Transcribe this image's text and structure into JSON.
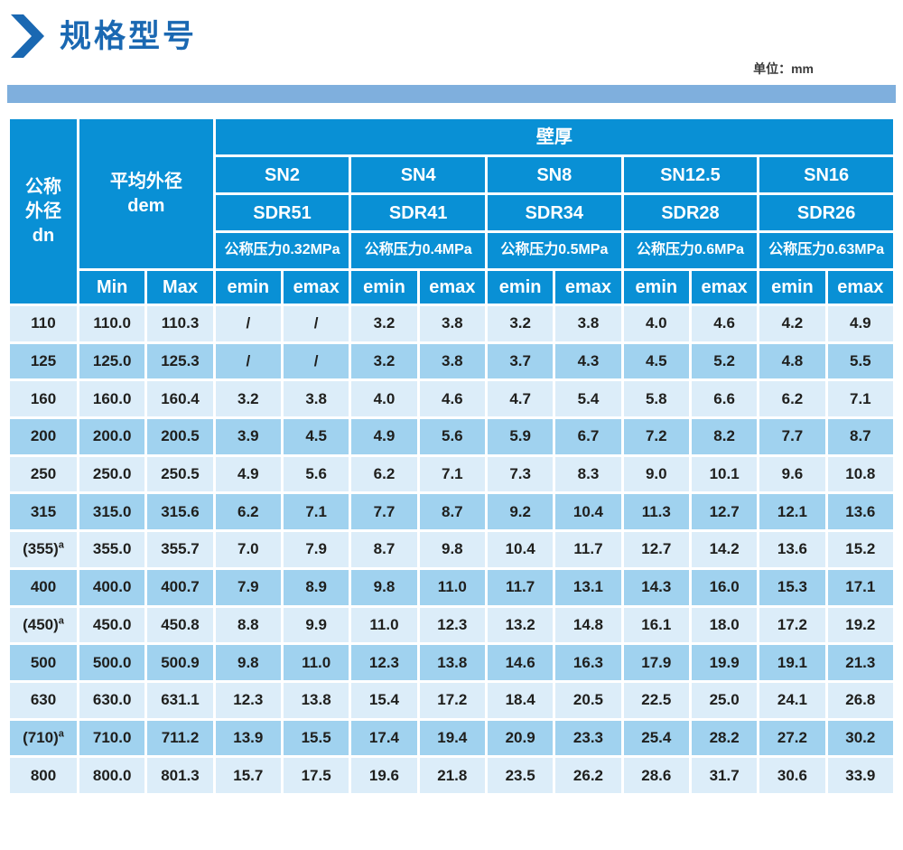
{
  "page": {
    "title": "规格型号",
    "unit_label": "单位：mm"
  },
  "colors": {
    "header_bg": "#0990d5",
    "row_light": "#dcedf9",
    "row_dark": "#a0d2ef",
    "title_blue": "#1a68b2",
    "divider_bar": "#7fafdd",
    "grid_line": "#ffffff",
    "body_text": "#1f1f1d"
  },
  "chart_data": {
    "type": "table",
    "title": "规格型号 (壁厚, 单位: mm)"
  },
  "table": {
    "header": {
      "dn_cn": "公称外径",
      "dn_en": "dn",
      "dem_cn": "平均外径",
      "dem_en": "dem",
      "wall": "壁厚",
      "min": "Min",
      "max": "Max",
      "emin": "emin",
      "emax": "emax",
      "groups": [
        {
          "sn": "SN2",
          "sdr": "SDR51",
          "pressure": "公称压力0.32MPa"
        },
        {
          "sn": "SN4",
          "sdr": "SDR41",
          "pressure": "公称压力0.4MPa"
        },
        {
          "sn": "SN8",
          "sdr": "SDR34",
          "pressure": "公称压力0.5MPa"
        },
        {
          "sn": "SN12.5",
          "sdr": "SDR28",
          "pressure": "公称压力0.6MPa"
        },
        {
          "sn": "SN16",
          "sdr": "SDR26",
          "pressure": "公称压力0.63MPa"
        }
      ]
    },
    "rows": [
      {
        "dn": "110",
        "dn_sup": "",
        "min": "110.0",
        "max": "110.3",
        "values": [
          "/",
          "/",
          "3.2",
          "3.8",
          "3.2",
          "3.8",
          "4.0",
          "4.6",
          "4.2",
          "4.9"
        ]
      },
      {
        "dn": "125",
        "dn_sup": "",
        "min": "125.0",
        "max": "125.3",
        "values": [
          "/",
          "/",
          "3.2",
          "3.8",
          "3.7",
          "4.3",
          "4.5",
          "5.2",
          "4.8",
          "5.5"
        ]
      },
      {
        "dn": "160",
        "dn_sup": "",
        "min": "160.0",
        "max": "160.4",
        "values": [
          "3.2",
          "3.8",
          "4.0",
          "4.6",
          "4.7",
          "5.4",
          "5.8",
          "6.6",
          "6.2",
          "7.1"
        ]
      },
      {
        "dn": "200",
        "dn_sup": "",
        "min": "200.0",
        "max": "200.5",
        "values": [
          "3.9",
          "4.5",
          "4.9",
          "5.6",
          "5.9",
          "6.7",
          "7.2",
          "8.2",
          "7.7",
          "8.7"
        ]
      },
      {
        "dn": "250",
        "dn_sup": "",
        "min": "250.0",
        "max": "250.5",
        "values": [
          "4.9",
          "5.6",
          "6.2",
          "7.1",
          "7.3",
          "8.3",
          "9.0",
          "10.1",
          "9.6",
          "10.8"
        ]
      },
      {
        "dn": "315",
        "dn_sup": "",
        "min": "315.0",
        "max": "315.6",
        "values": [
          "6.2",
          "7.1",
          "7.7",
          "8.7",
          "9.2",
          "10.4",
          "11.3",
          "12.7",
          "12.1",
          "13.6"
        ]
      },
      {
        "dn": "(355)",
        "dn_sup": "a",
        "min": "355.0",
        "max": "355.7",
        "values": [
          "7.0",
          "7.9",
          "8.7",
          "9.8",
          "10.4",
          "11.7",
          "12.7",
          "14.2",
          "13.6",
          "15.2"
        ]
      },
      {
        "dn": "400",
        "dn_sup": "",
        "min": "400.0",
        "max": "400.7",
        "values": [
          "7.9",
          "8.9",
          "9.8",
          "11.0",
          "11.7",
          "13.1",
          "14.3",
          "16.0",
          "15.3",
          "17.1"
        ]
      },
      {
        "dn": "(450)",
        "dn_sup": "a",
        "min": "450.0",
        "max": "450.8",
        "values": [
          "8.8",
          "9.9",
          "11.0",
          "12.3",
          "13.2",
          "14.8",
          "16.1",
          "18.0",
          "17.2",
          "19.2"
        ]
      },
      {
        "dn": "500",
        "dn_sup": "",
        "min": "500.0",
        "max": "500.9",
        "values": [
          "9.8",
          "11.0",
          "12.3",
          "13.8",
          "14.6",
          "16.3",
          "17.9",
          "19.9",
          "19.1",
          "21.3"
        ]
      },
      {
        "dn": "630",
        "dn_sup": "",
        "min": "630.0",
        "max": "631.1",
        "values": [
          "12.3",
          "13.8",
          "15.4",
          "17.2",
          "18.4",
          "20.5",
          "22.5",
          "25.0",
          "24.1",
          "26.8"
        ]
      },
      {
        "dn": "(710)",
        "dn_sup": "a",
        "min": "710.0",
        "max": "711.2",
        "values": [
          "13.9",
          "15.5",
          "17.4",
          "19.4",
          "20.9",
          "23.3",
          "25.4",
          "28.2",
          "27.2",
          "30.2"
        ]
      },
      {
        "dn": "800",
        "dn_sup": "",
        "min": "800.0",
        "max": "801.3",
        "values": [
          "15.7",
          "17.5",
          "19.6",
          "21.8",
          "23.5",
          "26.2",
          "28.6",
          "31.7",
          "30.6",
          "33.9"
        ]
      }
    ]
  }
}
